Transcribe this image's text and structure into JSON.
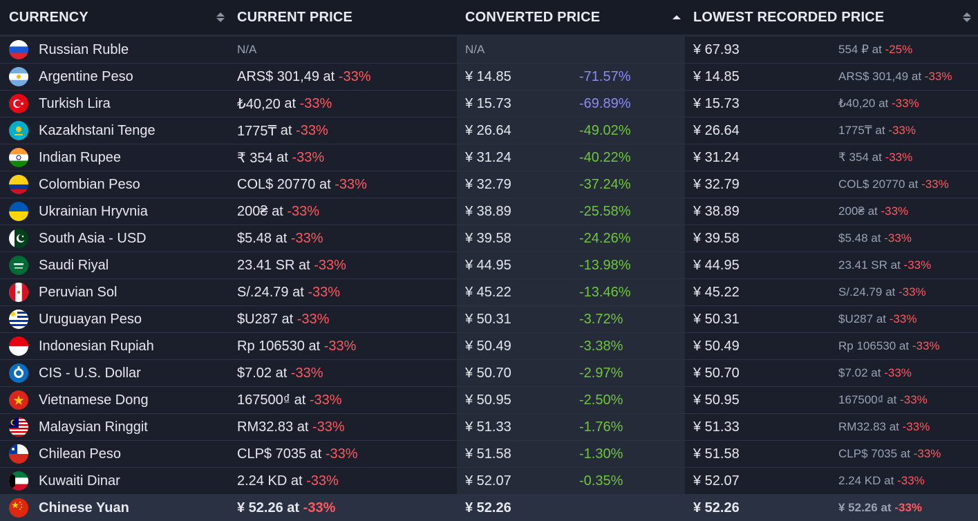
{
  "header": {
    "currency": "CURRENCY",
    "current_price": "CURRENT PRICE",
    "converted_price": "CONVERTED PRICE",
    "lowest_price": "LOWEST RECORDED PRICE"
  },
  "at_label": "at",
  "rows": [
    {
      "name": "Russian Ruble",
      "current": "N/A",
      "current_discount": "",
      "converted": "N/A",
      "diff": "",
      "lowest": "¥ 67.93",
      "lowest_orig": "554 ₽",
      "lowest_discount": "-25%",
      "flag": "ru"
    },
    {
      "name": "Argentine Peso",
      "current": "ARS$ 301,49",
      "current_discount": "-33%",
      "converted": "¥ 14.85",
      "diff": "-71.57%",
      "lowest": "¥ 14.85",
      "lowest_orig": "ARS$ 301,49",
      "lowest_discount": "-33%",
      "flag": "ar"
    },
    {
      "name": "Turkish Lira",
      "current": "₺40,20",
      "current_discount": "-33%",
      "converted": "¥ 15.73",
      "diff": "-69.89%",
      "lowest": "¥ 15.73",
      "lowest_orig": "₺40,20",
      "lowest_discount": "-33%",
      "flag": "tr"
    },
    {
      "name": "Kazakhstani Tenge",
      "current": "1775₸",
      "current_discount": "-33%",
      "converted": "¥ 26.64",
      "diff": "-49.02%",
      "lowest": "¥ 26.64",
      "lowest_orig": "1775₸",
      "lowest_discount": "-33%",
      "flag": "kz"
    },
    {
      "name": "Indian Rupee",
      "current": "₹ 354",
      "current_discount": "-33%",
      "converted": "¥ 31.24",
      "diff": "-40.22%",
      "lowest": "¥ 31.24",
      "lowest_orig": "₹ 354",
      "lowest_discount": "-33%",
      "flag": "in"
    },
    {
      "name": "Colombian Peso",
      "current": "COL$ 20770",
      "current_discount": "-33%",
      "converted": "¥ 32.79",
      "diff": "-37.24%",
      "lowest": "¥ 32.79",
      "lowest_orig": "COL$ 20770",
      "lowest_discount": "-33%",
      "flag": "co"
    },
    {
      "name": "Ukrainian Hryvnia",
      "current": "200₴",
      "current_discount": "-33%",
      "converted": "¥ 38.89",
      "diff": "-25.58%",
      "lowest": "¥ 38.89",
      "lowest_orig": "200₴",
      "lowest_discount": "-33%",
      "flag": "ua"
    },
    {
      "name": "South Asia - USD",
      "current": "$5.48",
      "current_discount": "-33%",
      "converted": "¥ 39.58",
      "diff": "-24.26%",
      "lowest": "¥ 39.58",
      "lowest_orig": "$5.48",
      "lowest_discount": "-33%",
      "flag": "pk"
    },
    {
      "name": "Saudi Riyal",
      "current": "23.41 SR",
      "current_discount": "-33%",
      "converted": "¥ 44.95",
      "diff": "-13.98%",
      "lowest": "¥ 44.95",
      "lowest_orig": "23.41 SR",
      "lowest_discount": "-33%",
      "flag": "sa"
    },
    {
      "name": "Peruvian Sol",
      "current": "S/.24.79",
      "current_discount": "-33%",
      "converted": "¥ 45.22",
      "diff": "-13.46%",
      "lowest": "¥ 45.22",
      "lowest_orig": "S/.24.79",
      "lowest_discount": "-33%",
      "flag": "pe"
    },
    {
      "name": "Uruguayan Peso",
      "current": "$U287",
      "current_discount": "-33%",
      "converted": "¥ 50.31",
      "diff": "-3.72%",
      "lowest": "¥ 50.31",
      "lowest_orig": "$U287",
      "lowest_discount": "-33%",
      "flag": "uy"
    },
    {
      "name": "Indonesian Rupiah",
      "current": "Rp 106530",
      "current_discount": "-33%",
      "converted": "¥ 50.49",
      "diff": "-3.38%",
      "lowest": "¥ 50.49",
      "lowest_orig": "Rp 106530",
      "lowest_discount": "-33%",
      "flag": "id"
    },
    {
      "name": "CIS - U.S. Dollar",
      "current": "$7.02",
      "current_discount": "-33%",
      "converted": "¥ 50.70",
      "diff": "-2.97%",
      "lowest": "¥ 50.70",
      "lowest_orig": "$7.02",
      "lowest_discount": "-33%",
      "flag": "cis"
    },
    {
      "name": "Vietnamese Dong",
      "current": "167500₫",
      "current_discount": "-33%",
      "converted": "¥ 50.95",
      "diff": "-2.50%",
      "lowest": "¥ 50.95",
      "lowest_orig": "167500₫",
      "lowest_discount": "-33%",
      "flag": "vn"
    },
    {
      "name": "Malaysian Ringgit",
      "current": "RM32.83",
      "current_discount": "-33%",
      "converted": "¥ 51.33",
      "diff": "-1.76%",
      "lowest": "¥ 51.33",
      "lowest_orig": "RM32.83",
      "lowest_discount": "-33%",
      "flag": "my"
    },
    {
      "name": "Chilean Peso",
      "current": "CLP$ 7035",
      "current_discount": "-33%",
      "converted": "¥ 51.58",
      "diff": "-1.30%",
      "lowest": "¥ 51.58",
      "lowest_orig": "CLP$ 7035",
      "lowest_discount": "-33%",
      "flag": "cl"
    },
    {
      "name": "Kuwaiti Dinar",
      "current": "2.24 KD",
      "current_discount": "-33%",
      "converted": "¥ 52.07",
      "diff": "-0.35%",
      "lowest": "¥ 52.07",
      "lowest_orig": "2.24 KD",
      "lowest_discount": "-33%",
      "flag": "kw"
    },
    {
      "name": "Chinese Yuan",
      "current": "¥ 52.26",
      "current_discount": "-33%",
      "converted": "¥ 52.26",
      "diff": "",
      "lowest": "¥ 52.26",
      "lowest_orig": "¥ 52.26",
      "lowest_discount": "-33%",
      "flag": "cn",
      "highlight": true
    }
  ],
  "colors": {
    "background": "#1b1f2b",
    "converted_column": "#252b38",
    "discount_red": "#ff5a5f",
    "diff_blue": "#8a8cf5",
    "diff_green": "#6fc63f",
    "muted_text": "#9aa3b2"
  }
}
